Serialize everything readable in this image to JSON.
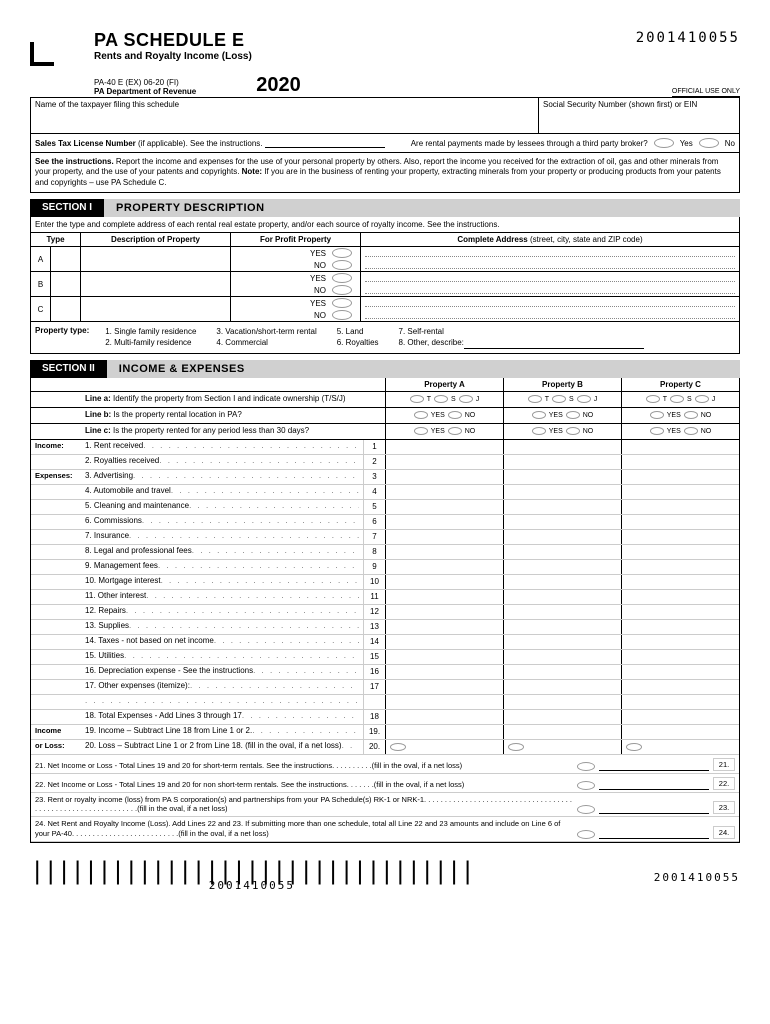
{
  "header": {
    "title": "PA SCHEDULE E",
    "subtitle": "Rents and Royalty Income (Loss)",
    "form_id": "2001410055",
    "form_code": "PA-40 E (EX) 06-20 (FI)",
    "dept": "PA Department of Revenue",
    "year": "2020",
    "official_use": "OFFICIAL USE ONLY"
  },
  "name_label": "Name of the taxpayer filing this schedule",
  "ssn_label": "Social Security Number (shown first) or EIN",
  "sales_tax": {
    "label": "Sales Tax License Number (if applicable). See the instructions.",
    "broker_q": "Are rental payments made by lessees through a third party broker?",
    "yes": "Yes",
    "no": "No"
  },
  "instructions_text": "See the instructions. Report the income and expenses for the use of your personal property by others. Also, report the income you received for the extraction of oil, gas and other minerals from your property, and the use of your patents and copyrights. Note: If you are in the business of renting your property, extracting minerals from your property or producing products from your patents and copyrights – use PA Schedule C.",
  "section1": {
    "tab": "SECTION I",
    "title": "PROPERTY DESCRIPTION",
    "intro": "Enter the type and complete address of each rental real estate property, and/or each source of royalty income. See the instructions.",
    "cols": {
      "type": "Type",
      "desc": "Description of Property",
      "profit": "For Profit Property",
      "addr_bold": "Complete Address",
      "addr_rest": " (street, city, state and ZIP code)"
    },
    "rows": [
      "A",
      "B",
      "C"
    ],
    "yes": "YES",
    "no": "NO",
    "legend_label": "Property type:",
    "legend": [
      [
        "1. Single family residence",
        "2. Multi-family residence"
      ],
      [
        "3. Vacation/short-term rental",
        "4. Commercial"
      ],
      [
        "5. Land",
        "6. Royalties"
      ],
      [
        "7. Self-rental",
        "8. Other, describe:"
      ]
    ]
  },
  "section2": {
    "tab": "SECTION II",
    "title": "INCOME & EXPENSES",
    "prop_headers": [
      "Property A",
      "Property B",
      "Property C"
    ],
    "line_a": "Line a:  Identify the property from Section I and indicate ownership (T/S/J)",
    "line_b": "Line b:  Is the property rental location in PA?",
    "line_c": "Line c:  Is the property rented for any period less than 30 days?",
    "tsj": [
      "T",
      "S",
      "J"
    ],
    "yes": "YES",
    "no": "NO",
    "income_label": "Income:",
    "expense_label": "Expenses:",
    "items": [
      {
        "cat": "Income:",
        "n": "1",
        "t": "1. Rent received"
      },
      {
        "cat": "",
        "n": "2",
        "t": "2. Royalties received"
      },
      {
        "cat": "Expenses:",
        "n": "3",
        "t": "3. Advertising"
      },
      {
        "cat": "",
        "n": "4",
        "t": "4. Automobile and travel"
      },
      {
        "cat": "",
        "n": "5",
        "t": "5. Cleaning and maintenance"
      },
      {
        "cat": "",
        "n": "6",
        "t": "6. Commissions"
      },
      {
        "cat": "",
        "n": "7",
        "t": "7. Insurance"
      },
      {
        "cat": "",
        "n": "8",
        "t": "8. Legal and professional fees"
      },
      {
        "cat": "",
        "n": "9",
        "t": "9. Management fees"
      },
      {
        "cat": "",
        "n": "10",
        "t": "10. Mortgage interest"
      },
      {
        "cat": "",
        "n": "11",
        "t": "11. Other interest"
      },
      {
        "cat": "",
        "n": "12",
        "t": "12. Repairs"
      },
      {
        "cat": "",
        "n": "13",
        "t": "13. Supplies"
      },
      {
        "cat": "",
        "n": "14",
        "t": "14. Taxes - not based on net income"
      },
      {
        "cat": "",
        "n": "15",
        "t": "15. Utilities"
      },
      {
        "cat": "",
        "n": "16",
        "t": "16. Depreciation expense - See the instructions"
      },
      {
        "cat": "",
        "n": "17",
        "t": "17. Other expenses (itemize):"
      },
      {
        "cat": "",
        "n": "",
        "t": ""
      },
      {
        "cat": "",
        "n": "18",
        "t": "18. Total Expenses - Add Lines 3 through 17"
      }
    ],
    "income_loss_label": "Income or Loss:",
    "line19": "19. Income – Subtract Line 18 from Line 1 or 2.",
    "line20": "20. Loss – Subtract Line 1 or 2 from Line 18. (fill in the oval, if a net loss)",
    "line21": "21. Net Income or Loss - Total Lines 19 and 20 for short-term rentals. See the instructions. . . . . . . . . .(fill in the oval, if a net loss)",
    "line22": "22. Net Income or Loss - Total Lines 19 and 20 for non short-term rentals. See the instructions. . . . . . .(fill in the oval, if a net loss)",
    "line23": "23. Rent or royalty income (loss) from PA S corporation(s) and partnerships from your PA Schedule(s) RK-1 or NRK-1. . . . . . . . . . . . . . . . . . . . . . . . . . . . . . . . . . . . . . . . . . . . . . . . . . . . . . . . . . . . .(fill in the oval, if a net loss)",
    "line24": "24. Net Rent and Royalty Income (Loss). Add Lines 22 and 23. If submitting more than one schedule, total all Line 22 and 23 amounts and include on Line 6 of your PA-40. . . . . . . . . . . . . . . . . . . . . . . . . .(fill in the oval, if a net loss)"
  },
  "footer_id": "2001410055"
}
